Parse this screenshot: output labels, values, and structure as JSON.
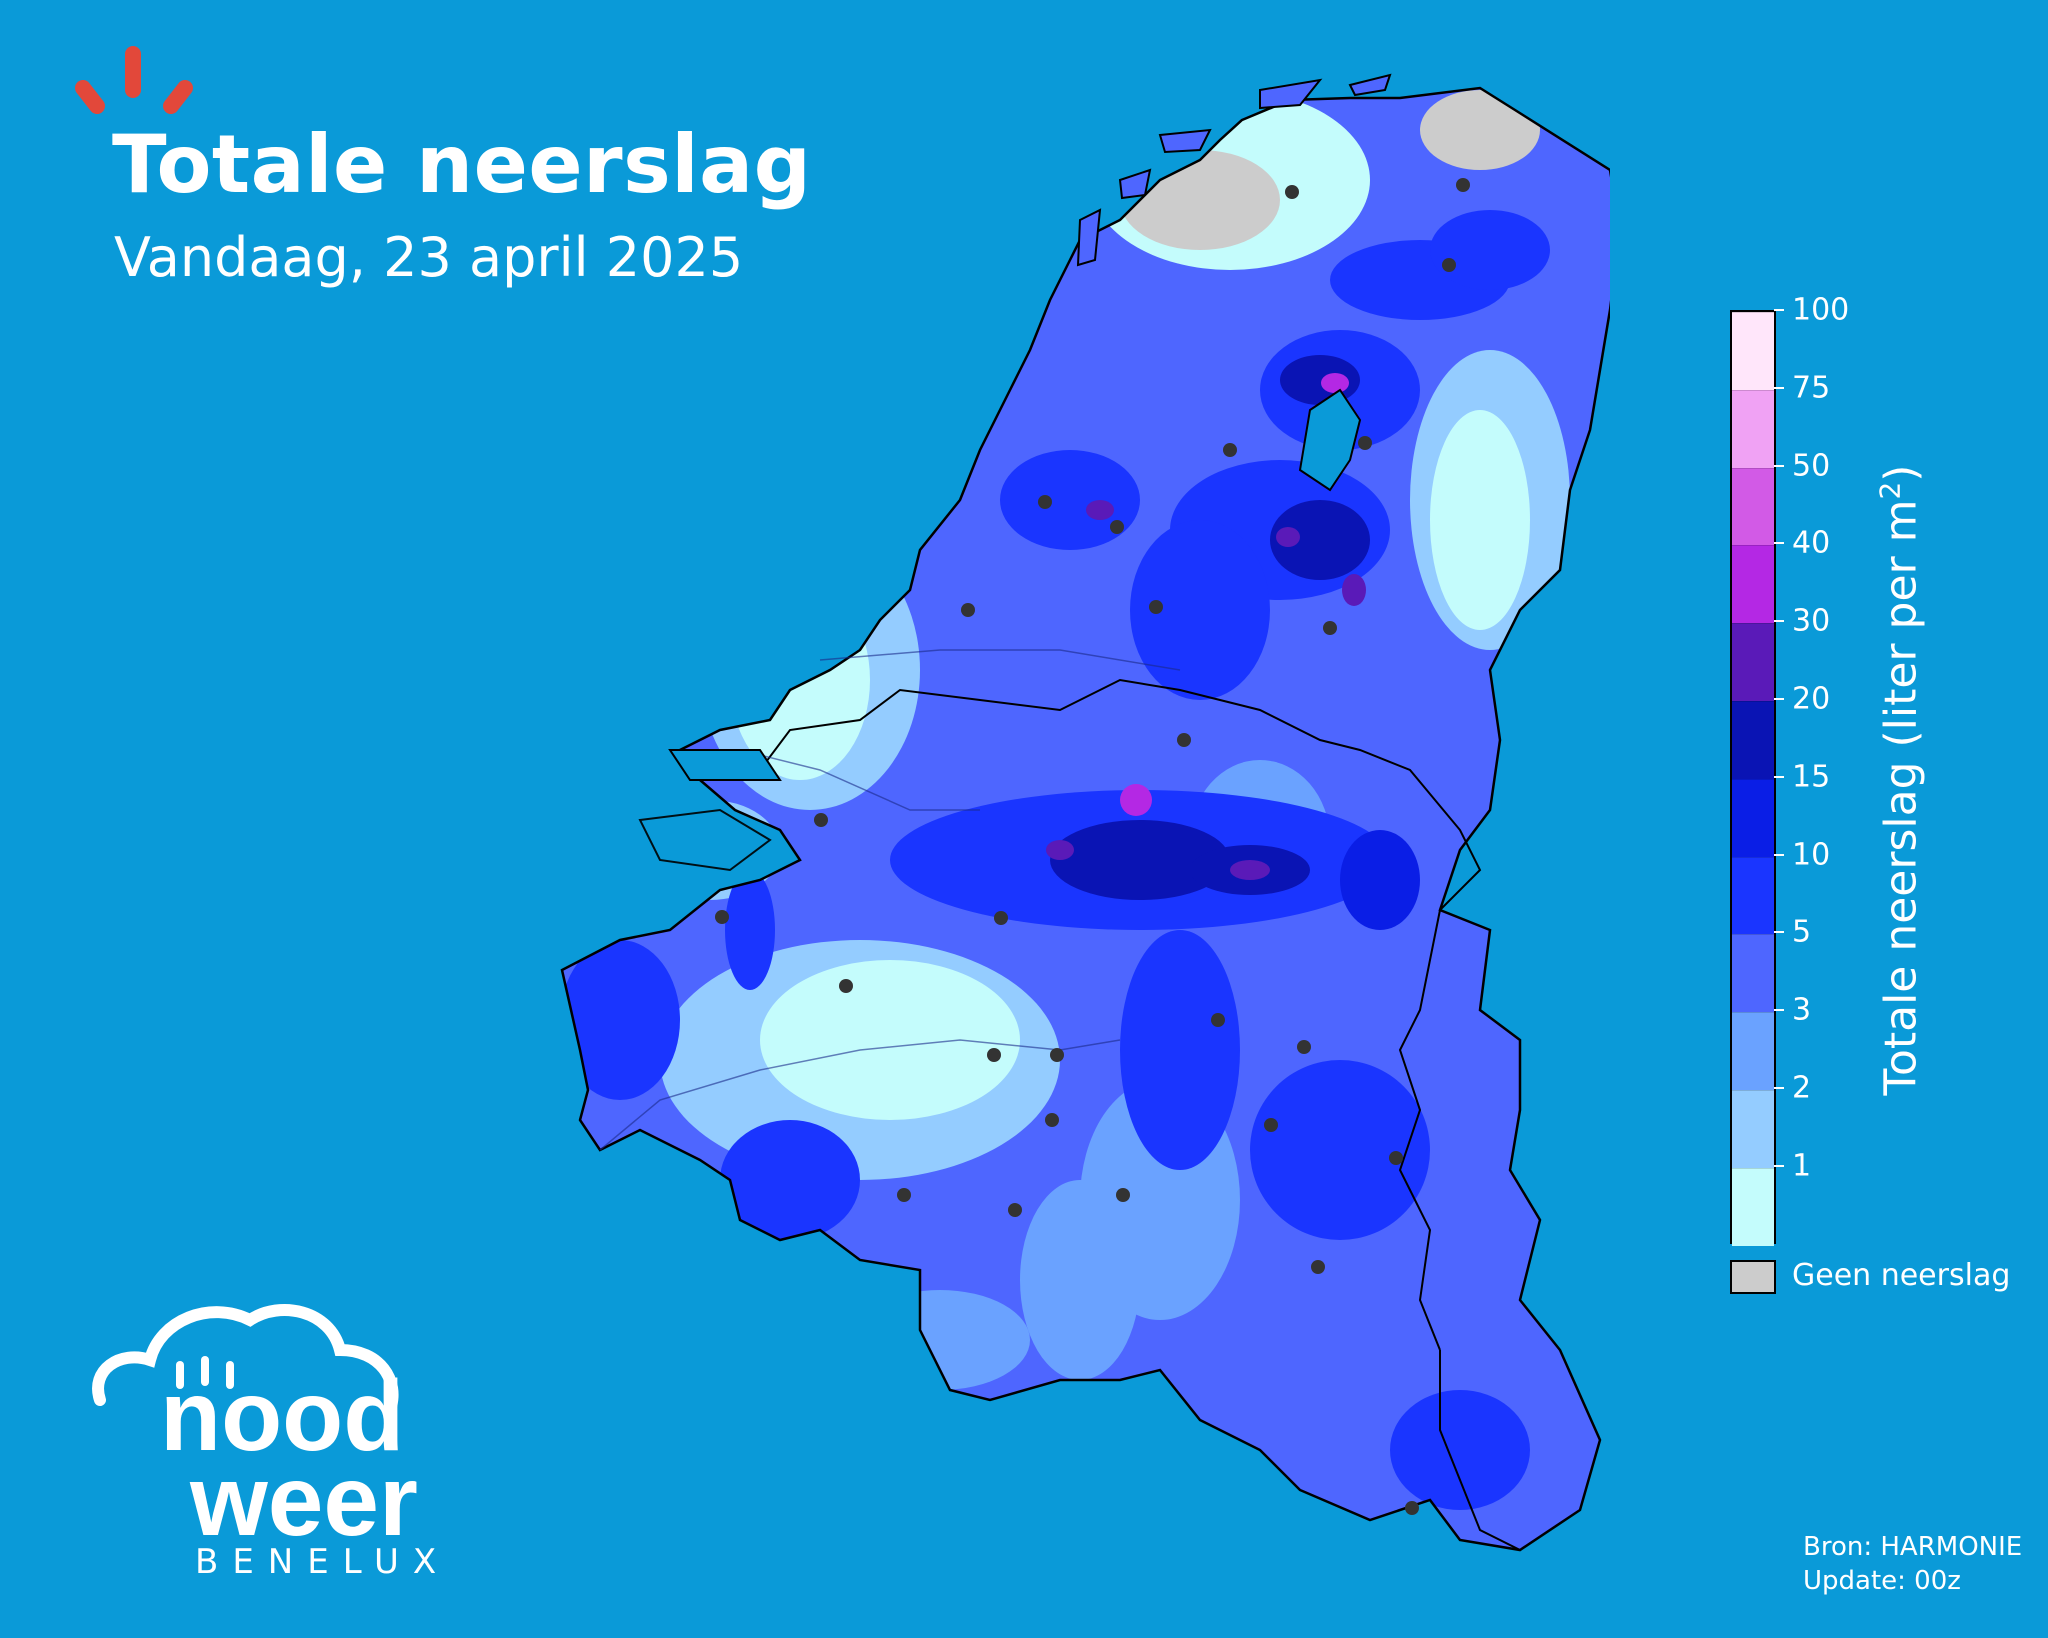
{
  "header": {
    "title": "Totale neerslag",
    "subtitle": "Vandaag, 23 april 2025"
  },
  "legend": {
    "title_main": "Totale neerslag (liter per m",
    "title_sup": "2",
    "title_end": ")",
    "levels": [
      "1",
      "2",
      "3",
      "5",
      "10",
      "15",
      "20",
      "30",
      "40",
      "50",
      "75",
      "100"
    ],
    "colors": [
      "#c4fcfc",
      "#94ccff",
      "#6aa2ff",
      "#4e66ff",
      "#1a35ff",
      "#0a1ee6",
      "#0a14b4",
      "#5a1ab8",
      "#b428e4",
      "#d25ae6",
      "#f0a2f4",
      "#ffe6fa"
    ],
    "no_precip_label": "Geen neerslag",
    "no_precip_color": "#cccccc"
  },
  "brand": {
    "logo_line1": "nood",
    "logo_line2": "weer",
    "logo_line3": "BENELUX",
    "accent_color": "#e2483a"
  },
  "footer": {
    "source": "Bron: HARMONIE",
    "update": "Update: 00z"
  },
  "map": {
    "region": "Benelux",
    "background_color": "#0a9ad8",
    "city_marker_color": "#333333"
  }
}
